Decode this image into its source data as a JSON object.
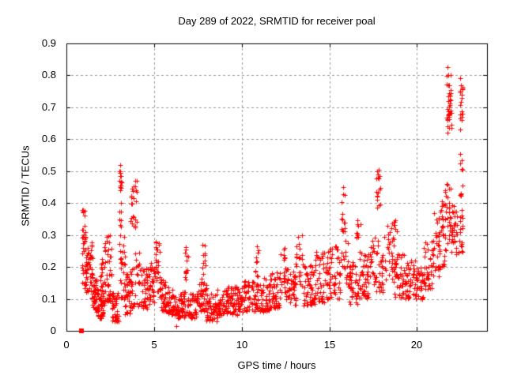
{
  "chart_data": {
    "type": "scatter",
    "title": "Day 289 of 2022, SRMTID for receiver poal",
    "xlabel": "GPS time / hours",
    "ylabel": "SRMTID / TECUs",
    "xlim": [
      0,
      24
    ],
    "ylim": [
      0,
      0.9
    ],
    "xticks": {
      "values": [
        0,
        5,
        10,
        15,
        20
      ],
      "labels": [
        "0",
        "5",
        "10",
        "15",
        "20"
      ]
    },
    "yticks": {
      "values": [
        0,
        0.1,
        0.2,
        0.3,
        0.4,
        0.5,
        0.6,
        0.7,
        0.8,
        0.9
      ],
      "labels": [
        "0",
        "0.1",
        "0.2",
        "0.3",
        "0.4",
        "0.5",
        "0.6",
        "0.7",
        "0.8",
        "0.9"
      ]
    },
    "grid": true,
    "legend_position": "none",
    "series": [
      {
        "name": "srmtid",
        "marker": "plus",
        "color": "#ff0000",
        "marker_size": 7,
        "seed": 289,
        "outlier_points": [
          [
            3.05,
            0.52
          ],
          [
            3.04,
            0.5
          ],
          [
            3.07,
            0.5
          ],
          [
            3.05,
            0.495
          ],
          [
            3.06,
            0.485
          ],
          [
            3.05,
            0.44
          ],
          [
            3.1,
            0.4
          ],
          [
            4.0,
            0.47
          ],
          [
            3.98,
            0.44
          ],
          [
            1.05,
            0.375
          ],
          [
            1.02,
            0.36
          ],
          [
            6.28,
            0.015
          ],
          [
            15.78,
            0.45
          ],
          [
            17.8,
            0.505
          ],
          [
            17.78,
            0.48
          ],
          [
            21.74,
            0.825
          ],
          [
            21.78,
            0.8
          ],
          [
            22.46,
            0.79
          ]
        ],
        "density_segments": [
          [
            0.88,
            1.08,
            28,
            0.14,
            0.38,
            1.0
          ],
          [
            1.05,
            1.3,
            30,
            0.12,
            0.3,
            1.2
          ],
          [
            1.25,
            1.5,
            25,
            0.1,
            0.28,
            1.2
          ],
          [
            1.45,
            1.8,
            45,
            0.06,
            0.16,
            1.5
          ],
          [
            1.8,
            2.1,
            40,
            0.04,
            0.15,
            1.4
          ],
          [
            1.95,
            2.1,
            10,
            0.15,
            0.23,
            1.0
          ],
          [
            2.1,
            2.35,
            25,
            0.08,
            0.3,
            1.2
          ],
          [
            2.35,
            2.6,
            25,
            0.09,
            0.31,
            1.2
          ],
          [
            2.6,
            3.0,
            45,
            0.03,
            0.12,
            1.4
          ],
          [
            3.0,
            3.15,
            16,
            0.25,
            0.5,
            1.0
          ],
          [
            3.0,
            3.35,
            30,
            0.1,
            0.3,
            1.3
          ],
          [
            3.3,
            3.65,
            40,
            0.05,
            0.18,
            1.4
          ],
          [
            3.65,
            4.05,
            22,
            0.28,
            0.47,
            1.0
          ],
          [
            3.6,
            4.2,
            35,
            0.07,
            0.25,
            1.3
          ],
          [
            4.2,
            4.65,
            40,
            0.07,
            0.2,
            1.3
          ],
          [
            4.65,
            5.0,
            35,
            0.08,
            0.22,
            1.2
          ],
          [
            5.0,
            5.35,
            28,
            0.12,
            0.28,
            1.1
          ],
          [
            5.3,
            5.8,
            40,
            0.06,
            0.16,
            1.4
          ],
          [
            5.8,
            6.3,
            45,
            0.05,
            0.14,
            1.4
          ],
          [
            6.3,
            6.8,
            45,
            0.04,
            0.13,
            1.4
          ],
          [
            6.75,
            6.95,
            13,
            0.15,
            0.27,
            1.0
          ],
          [
            6.9,
            7.5,
            50,
            0.04,
            0.12,
            1.4
          ],
          [
            7.5,
            8.0,
            45,
            0.06,
            0.18,
            1.3
          ],
          [
            7.75,
            7.95,
            10,
            0.18,
            0.27,
            1.0
          ],
          [
            8.0,
            8.6,
            50,
            0.03,
            0.12,
            1.4
          ],
          [
            8.6,
            9.2,
            50,
            0.05,
            0.13,
            1.4
          ],
          [
            9.2,
            9.8,
            50,
            0.05,
            0.14,
            1.3
          ],
          [
            9.8,
            10.4,
            50,
            0.06,
            0.16,
            1.3
          ],
          [
            10.4,
            10.95,
            40,
            0.06,
            0.17,
            1.3
          ],
          [
            10.8,
            11.0,
            10,
            0.17,
            0.27,
            1.0
          ],
          [
            11.0,
            11.6,
            50,
            0.06,
            0.17,
            1.3
          ],
          [
            11.6,
            12.2,
            50,
            0.07,
            0.19,
            1.3
          ],
          [
            12.2,
            12.5,
            18,
            0.12,
            0.26,
            1.1
          ],
          [
            12.5,
            13.1,
            50,
            0.08,
            0.2,
            1.3
          ],
          [
            13.1,
            13.5,
            22,
            0.12,
            0.3,
            1.1
          ],
          [
            13.5,
            14.2,
            55,
            0.08,
            0.21,
            1.3
          ],
          [
            14.2,
            14.9,
            50,
            0.09,
            0.25,
            1.2
          ],
          [
            14.9,
            15.6,
            50,
            0.1,
            0.27,
            1.2
          ],
          [
            15.6,
            16.1,
            22,
            0.14,
            0.33,
            1.1
          ],
          [
            15.7,
            15.9,
            12,
            0.3,
            0.43,
            1.0
          ],
          [
            16.1,
            16.7,
            45,
            0.08,
            0.22,
            1.3
          ],
          [
            16.55,
            16.8,
            10,
            0.28,
            0.36,
            1.0
          ],
          [
            16.7,
            17.3,
            45,
            0.1,
            0.25,
            1.2
          ],
          [
            17.3,
            17.6,
            18,
            0.14,
            0.3,
            1.1
          ],
          [
            17.7,
            17.92,
            15,
            0.38,
            0.51,
            1.0
          ],
          [
            17.6,
            18.2,
            35,
            0.12,
            0.3,
            1.2
          ],
          [
            18.2,
            18.7,
            25,
            0.15,
            0.33,
            1.1
          ],
          [
            18.55,
            18.85,
            12,
            0.28,
            0.38,
            1.0
          ],
          [
            18.7,
            19.3,
            42,
            0.1,
            0.25,
            1.2
          ],
          [
            19.3,
            19.9,
            45,
            0.1,
            0.22,
            1.3
          ],
          [
            19.9,
            20.4,
            40,
            0.1,
            0.2,
            1.3
          ],
          [
            20.4,
            20.9,
            35,
            0.13,
            0.28,
            1.2
          ],
          [
            20.9,
            21.3,
            30,
            0.17,
            0.38,
            1.1
          ],
          [
            21.2,
            21.6,
            28,
            0.2,
            0.44,
            1.1
          ],
          [
            21.6,
            21.95,
            30,
            0.24,
            0.46,
            1.0
          ],
          [
            21.7,
            21.98,
            26,
            0.62,
            0.83,
            1.0
          ],
          [
            21.78,
            21.94,
            14,
            0.68,
            0.77,
            1.0
          ],
          [
            21.95,
            22.3,
            30,
            0.24,
            0.4,
            1.1
          ],
          [
            22.3,
            22.62,
            20,
            0.24,
            0.38,
            1.1
          ],
          [
            22.4,
            22.62,
            18,
            0.63,
            0.79,
            1.0
          ],
          [
            22.42,
            22.6,
            10,
            0.4,
            0.56,
            1.0
          ]
        ]
      },
      {
        "name": "flagged-zero",
        "marker": "filled-square",
        "color": "#ff0000",
        "marker_size": 6,
        "points": [
          [
            0.84,
            0.0
          ]
        ]
      }
    ]
  },
  "colors": {
    "background": "#ffffff",
    "frame": "#000000",
    "grid": "#999999",
    "marker": "#ff0000",
    "text": "#000000"
  }
}
